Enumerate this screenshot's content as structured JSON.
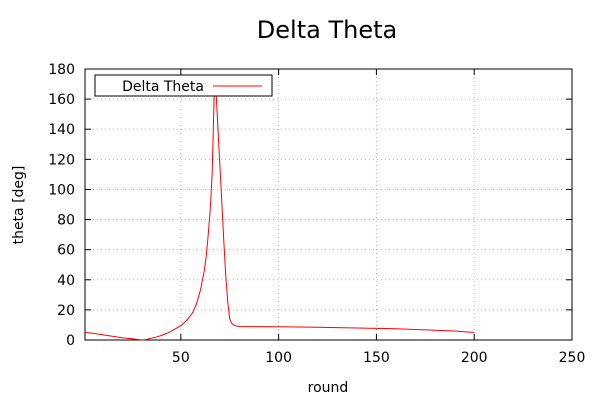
{
  "chart_data": {
    "type": "line",
    "title": "Delta Theta",
    "xlabel": "round",
    "ylabel": "theta [deg]",
    "xlim": [
      1,
      250
    ],
    "ylim": [
      0,
      180
    ],
    "xticks": [
      50,
      100,
      150,
      200,
      250
    ],
    "yticks": [
      0,
      20,
      40,
      60,
      80,
      100,
      120,
      140,
      160,
      180
    ],
    "grid": true,
    "legend_position": "top-left",
    "series": [
      {
        "name": "Delta Theta",
        "color": "#ff0000",
        "x": [
          1,
          5,
          10,
          15,
          20,
          25,
          28,
          30,
          31,
          33,
          35,
          38,
          40,
          43,
          46,
          50,
          53,
          56,
          58,
          60,
          62,
          63,
          64,
          65,
          66,
          66.5,
          67,
          67.5,
          68,
          69,
          70,
          71,
          72,
          73,
          74,
          75,
          76,
          77,
          78,
          80,
          90,
          100,
          120,
          140,
          160,
          180,
          190,
          200
        ],
        "y": [
          5,
          4.5,
          3.5,
          2.5,
          1.5,
          0.8,
          0.3,
          0.1,
          0.1,
          0.5,
          1.2,
          2.2,
          3,
          4.5,
          6.5,
          9.5,
          13,
          18,
          24,
          33,
          46,
          56,
          70,
          86,
          110,
          135,
          160,
          172,
          165,
          140,
          115,
          90,
          65,
          42,
          25,
          14,
          11,
          10,
          9.5,
          9,
          8.9,
          8.8,
          8.5,
          8,
          7.5,
          6.5,
          6,
          5
        ]
      }
    ]
  }
}
